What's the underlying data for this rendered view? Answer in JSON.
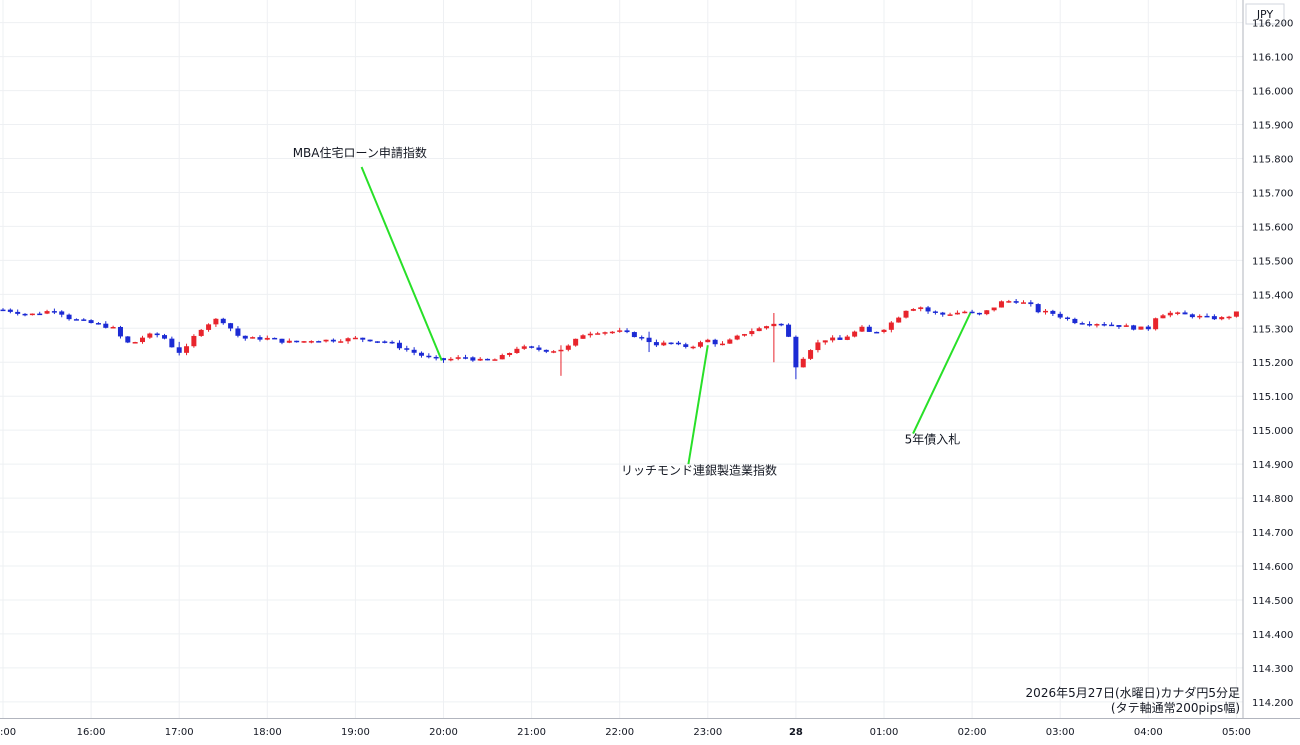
{
  "chart_data": {
    "type": "candlestick",
    "currency": "JPY",
    "caption_line1": "2026年5月27日(水曜日)カナダ円5分足",
    "caption_line2": "(タテ軸通常200pips幅)",
    "ylim": [
      114.17,
      116.255
    ],
    "y_ticks": [
      "116.200",
      "116.100",
      "116.000",
      "115.900",
      "115.800",
      "115.700",
      "115.600",
      "115.500",
      "115.400",
      "115.300",
      "115.200",
      "115.100",
      "115.000",
      "114.900",
      "114.800",
      "114.700",
      "114.600",
      "114.500",
      "114.400",
      "114.300",
      "114.200"
    ],
    "x_ticks": [
      {
        "label": ":00",
        "hour": 15,
        "bold": false
      },
      {
        "label": "16:00",
        "hour": 16,
        "bold": false
      },
      {
        "label": "17:00",
        "hour": 17,
        "bold": false
      },
      {
        "label": "18:00",
        "hour": 18,
        "bold": false
      },
      {
        "label": "19:00",
        "hour": 19,
        "bold": false
      },
      {
        "label": "20:00",
        "hour": 20,
        "bold": false
      },
      {
        "label": "21:00",
        "hour": 21,
        "bold": false
      },
      {
        "label": "22:00",
        "hour": 22,
        "bold": false
      },
      {
        "label": "23:00",
        "hour": 23,
        "bold": false
      },
      {
        "label": "28",
        "hour": 24,
        "bold": true
      },
      {
        "label": "01:00",
        "hour": 25,
        "bold": false
      },
      {
        "label": "02:00",
        "hour": 26,
        "bold": false
      },
      {
        "label": "03:00",
        "hour": 27,
        "bold": false
      },
      {
        "label": "04:00",
        "hour": 28,
        "bold": false
      },
      {
        "label": "05:00",
        "hour": 29,
        "bold": false
      }
    ],
    "close_path": [
      [
        15.0,
        115.355
      ],
      [
        15.3,
        115.34
      ],
      [
        15.6,
        115.355
      ],
      [
        15.75,
        115.33
      ],
      [
        15.9,
        115.32
      ],
      [
        16.1,
        115.31
      ],
      [
        16.25,
        115.3
      ],
      [
        16.35,
        115.27
      ],
      [
        16.45,
        115.25
      ],
      [
        16.55,
        115.27
      ],
      [
        16.65,
        115.28
      ],
      [
        16.8,
        115.28
      ],
      [
        16.9,
        115.25
      ],
      [
        17.0,
        115.23
      ],
      [
        17.1,
        115.245
      ],
      [
        17.2,
        115.29
      ],
      [
        17.3,
        115.31
      ],
      [
        17.45,
        115.33
      ],
      [
        17.55,
        115.31
      ],
      [
        17.65,
        115.28
      ],
      [
        17.75,
        115.27
      ],
      [
        18.0,
        115.27
      ],
      [
        18.2,
        115.26
      ],
      [
        18.35,
        115.26
      ],
      [
        18.5,
        115.265
      ],
      [
        18.75,
        115.265
      ],
      [
        19.0,
        115.27
      ],
      [
        19.2,
        115.265
      ],
      [
        19.35,
        115.26
      ],
      [
        19.5,
        115.245
      ],
      [
        19.65,
        115.23
      ],
      [
        19.8,
        115.215
      ],
      [
        19.95,
        115.205
      ],
      [
        20.1,
        115.21
      ],
      [
        20.25,
        115.215
      ],
      [
        20.4,
        115.205
      ],
      [
        20.55,
        115.205
      ],
      [
        20.7,
        115.22
      ],
      [
        20.85,
        115.245
      ],
      [
        21.0,
        115.24
      ],
      [
        21.15,
        115.235
      ],
      [
        21.3,
        115.235
      ],
      [
        21.45,
        115.25
      ],
      [
        21.55,
        115.28
      ],
      [
        21.7,
        115.29
      ],
      [
        21.85,
        115.29
      ],
      [
        22.0,
        115.29
      ],
      [
        22.15,
        115.28
      ],
      [
        22.3,
        115.265
      ],
      [
        22.45,
        115.25
      ],
      [
        22.55,
        115.26
      ],
      [
        22.7,
        115.245
      ],
      [
        22.85,
        115.25
      ],
      [
        23.0,
        115.265
      ],
      [
        23.15,
        115.25
      ],
      [
        23.3,
        115.27
      ],
      [
        23.45,
        115.29
      ],
      [
        23.6,
        115.3
      ],
      [
        23.7,
        115.31
      ],
      [
        23.8,
        115.32
      ],
      [
        23.9,
        115.29
      ],
      [
        24.0,
        115.19
      ],
      [
        24.1,
        115.22
      ],
      [
        24.2,
        115.25
      ],
      [
        24.35,
        115.27
      ],
      [
        24.5,
        115.265
      ],
      [
        24.6,
        115.28
      ],
      [
        24.75,
        115.3
      ],
      [
        24.85,
        115.285
      ],
      [
        25.0,
        115.3
      ],
      [
        25.1,
        115.32
      ],
      [
        25.25,
        115.355
      ],
      [
        25.4,
        115.365
      ],
      [
        25.5,
        115.35
      ],
      [
        25.65,
        115.34
      ],
      [
        25.8,
        115.345
      ],
      [
        25.95,
        115.35
      ],
      [
        26.05,
        115.335
      ],
      [
        26.2,
        115.355
      ],
      [
        26.35,
        115.38
      ],
      [
        26.5,
        115.38
      ],
      [
        26.65,
        115.37
      ],
      [
        26.75,
        115.35
      ],
      [
        26.9,
        115.345
      ],
      [
        27.0,
        115.335
      ],
      [
        27.15,
        115.32
      ],
      [
        27.3,
        115.315
      ],
      [
        27.45,
        115.315
      ],
      [
        27.6,
        115.31
      ],
      [
        27.75,
        115.305
      ],
      [
        27.85,
        115.3
      ],
      [
        28.0,
        115.3
      ],
      [
        28.1,
        115.34
      ],
      [
        28.25,
        115.345
      ],
      [
        28.4,
        115.34
      ],
      [
        28.55,
        115.335
      ],
      [
        28.7,
        115.33
      ],
      [
        28.85,
        115.33
      ],
      [
        29.0,
        115.345
      ]
    ],
    "spikes": [
      {
        "hour": 21.35,
        "low": 115.16,
        "high": 115.25
      },
      {
        "hour": 23.78,
        "low": 115.2,
        "high": 115.345
      },
      {
        "hour": 23.98,
        "low": 115.15,
        "high": 115.23
      },
      {
        "hour": 17.0,
        "low": 115.22,
        "high": 115.26
      },
      {
        "hour": 22.3,
        "low": 115.23,
        "high": 115.29
      }
    ],
    "annotations": [
      {
        "label": "MBA住宅ローン申請指数",
        "label_hour": 19.05,
        "label_price": 115.805,
        "from_hour": 19.07,
        "from_price": 115.775,
        "to_hour": 19.98,
        "to_price": 115.205
      },
      {
        "label": "リッチモンド連銀製造業指数",
        "label_hour": 22.9,
        "label_price": 114.87,
        "from_hour": 22.78,
        "from_price": 114.9,
        "to_hour": 23.0,
        "to_price": 115.25
      },
      {
        "label": "5年債入札",
        "label_hour": 25.55,
        "label_price": 114.96,
        "from_hour": 25.33,
        "from_price": 114.99,
        "to_hour": 25.98,
        "to_price": 115.345
      }
    ],
    "colors": {
      "up": "#e8242c",
      "down": "#1c2bd4",
      "grid": "#eef0f3",
      "annotation": "#28e028"
    },
    "grid": true
  }
}
